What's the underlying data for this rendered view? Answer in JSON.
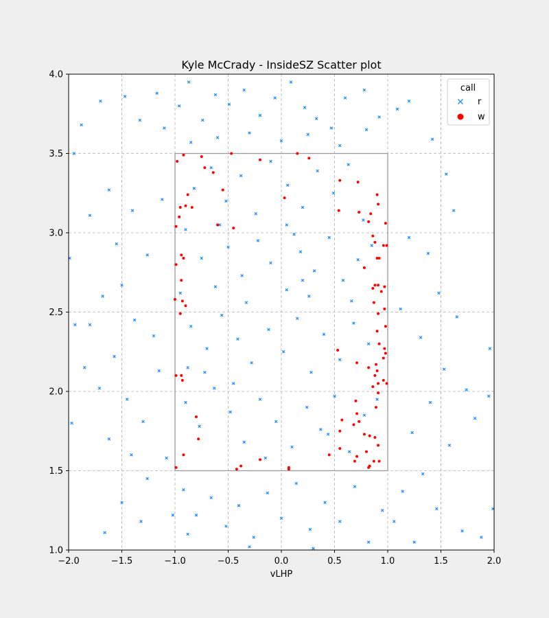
{
  "chart_data": {
    "type": "scatter",
    "title": "Kyle McCrady - InsideSZ Scatter plot",
    "xlabel": "vLHP",
    "ylabel": "",
    "xlim": [
      -2.0,
      2.0
    ],
    "ylim": [
      1.0,
      4.0
    ],
    "x_ticks": [
      "−2.0",
      "−1.5",
      "−1.0",
      "−0.5",
      "0.0",
      "0.5",
      "1.0",
      "1.5",
      "2.0"
    ],
    "y_ticks": [
      "1.0",
      "1.5",
      "2.0",
      "2.5",
      "3.0",
      "3.5",
      "4.0"
    ],
    "grid": true,
    "legend": {
      "title": "call",
      "position": "top-right"
    },
    "strike_zone": {
      "x": [
        -1.0,
        1.0
      ],
      "y": [
        1.5,
        3.5
      ],
      "color": "#999999"
    },
    "series": [
      {
        "name": "r",
        "marker": "x",
        "color": "#1e90ff",
        "points": [
          [
            -1.95,
            3.5
          ],
          [
            -1.88,
            3.68
          ],
          [
            -1.7,
            3.83
          ],
          [
            -1.47,
            3.86
          ],
          [
            -1.33,
            3.71
          ],
          [
            -1.17,
            3.88
          ],
          [
            -1.1,
            3.66
          ],
          [
            -0.96,
            3.8
          ],
          [
            -0.87,
            3.95
          ],
          [
            -0.74,
            3.71
          ],
          [
            -0.62,
            3.87
          ],
          [
            -0.49,
            3.81
          ],
          [
            -0.35,
            3.9
          ],
          [
            -0.2,
            3.74
          ],
          [
            -0.06,
            3.85
          ],
          [
            0.09,
            3.95
          ],
          [
            0.22,
            3.79
          ],
          [
            0.33,
            3.72
          ],
          [
            0.47,
            3.66
          ],
          [
            0.6,
            3.85
          ],
          [
            0.78,
            3.9
          ],
          [
            0.92,
            3.73
          ],
          [
            1.09,
            3.78
          ],
          [
            1.2,
            3.83
          ],
          [
            1.42,
            3.59
          ],
          [
            -1.8,
            3.11
          ],
          [
            -1.62,
            3.27
          ],
          [
            -1.55,
            2.93
          ],
          [
            -1.4,
            3.14
          ],
          [
            -1.26,
            2.86
          ],
          [
            -1.12,
            3.21
          ],
          [
            -1.5,
            2.67
          ],
          [
            -1.68,
            2.6
          ],
          [
            -1.38,
            2.45
          ],
          [
            -1.2,
            2.35
          ],
          [
            -1.57,
            2.22
          ],
          [
            -1.8,
            2.42
          ],
          [
            -1.71,
            2.02
          ],
          [
            -1.45,
            1.95
          ],
          [
            -1.3,
            1.81
          ],
          [
            -1.15,
            2.13
          ],
          [
            -1.62,
            1.7
          ],
          [
            -1.41,
            1.6
          ],
          [
            -1.26,
            1.45
          ],
          [
            -1.08,
            1.58
          ],
          [
            -1.5,
            1.3
          ],
          [
            -1.32,
            1.18
          ],
          [
            -1.02,
            1.22
          ],
          [
            -0.88,
            1.1
          ],
          [
            -1.66,
            1.11
          ],
          [
            1.55,
            3.37
          ],
          [
            1.62,
            3.14
          ],
          [
            1.38,
            2.87
          ],
          [
            1.2,
            2.97
          ],
          [
            1.48,
            2.62
          ],
          [
            1.65,
            2.47
          ],
          [
            1.31,
            2.34
          ],
          [
            1.12,
            2.52
          ],
          [
            1.53,
            2.14
          ],
          [
            1.74,
            2.01
          ],
          [
            1.4,
            1.93
          ],
          [
            1.23,
            1.74
          ],
          [
            1.58,
            1.66
          ],
          [
            1.33,
            1.48
          ],
          [
            1.14,
            1.37
          ],
          [
            1.46,
            1.26
          ],
          [
            1.7,
            1.12
          ],
          [
            1.06,
            1.18
          ],
          [
            1.25,
            1.05
          ],
          [
            1.88,
            1.08
          ],
          [
            1.82,
            1.83
          ],
          [
            1.96,
            2.27
          ],
          [
            1.95,
            1.97
          ],
          [
            1.99,
            1.26
          ],
          [
            -1.97,
            1.8
          ],
          [
            -1.94,
            2.42
          ],
          [
            -1.99,
            2.84
          ],
          [
            -1.85,
            2.15
          ],
          [
            -0.9,
            3.02
          ],
          [
            -0.75,
            2.84
          ],
          [
            -0.62,
            2.66
          ],
          [
            -0.5,
            2.91
          ],
          [
            -0.37,
            2.73
          ],
          [
            -0.22,
            2.95
          ],
          [
            -0.1,
            2.81
          ],
          [
            0.05,
            2.64
          ],
          [
            0.18,
            2.88
          ],
          [
            0.31,
            2.76
          ],
          [
            0.45,
            2.97
          ],
          [
            0.58,
            2.7
          ],
          [
            0.72,
            2.83
          ],
          [
            0.85,
            2.92
          ],
          [
            -0.85,
            2.41
          ],
          [
            -0.7,
            2.27
          ],
          [
            -0.56,
            2.48
          ],
          [
            -0.41,
            2.33
          ],
          [
            -0.28,
            2.18
          ],
          [
            -0.12,
            2.39
          ],
          [
            0.02,
            2.25
          ],
          [
            0.15,
            2.46
          ],
          [
            0.28,
            2.12
          ],
          [
            0.4,
            2.36
          ],
          [
            0.55,
            2.2
          ],
          [
            0.68,
            2.43
          ],
          [
            0.82,
            2.3
          ],
          [
            -0.9,
            1.93
          ],
          [
            -0.77,
            1.78
          ],
          [
            -0.63,
            2.02
          ],
          [
            -0.48,
            1.87
          ],
          [
            -0.35,
            1.68
          ],
          [
            -0.2,
            1.95
          ],
          [
            -0.05,
            1.81
          ],
          [
            0.1,
            1.65
          ],
          [
            0.24,
            1.9
          ],
          [
            0.37,
            1.76
          ],
          [
            0.5,
            1.97
          ],
          [
            0.64,
            1.62
          ],
          [
            0.78,
            1.85
          ],
          [
            -0.82,
            3.28
          ],
          [
            -0.66,
            3.41
          ],
          [
            -0.52,
            3.2
          ],
          [
            -0.38,
            3.36
          ],
          [
            -0.24,
            3.12
          ],
          [
            -0.1,
            3.45
          ],
          [
            0.06,
            3.3
          ],
          [
            0.2,
            3.16
          ],
          [
            0.34,
            3.39
          ],
          [
            0.49,
            3.25
          ],
          [
            0.63,
            3.43
          ],
          [
            0.77,
            3.08
          ],
          [
            -0.95,
            2.62
          ],
          [
            -0.33,
            2.56
          ],
          [
            0.26,
            2.6
          ],
          [
            0.66,
            2.57
          ],
          [
            -0.58,
            3.05
          ],
          [
            0.12,
            2.99
          ],
          [
            -0.45,
            2.05
          ],
          [
            0.44,
            1.73
          ],
          [
            -0.92,
            1.38
          ],
          [
            -0.8,
            1.22
          ],
          [
            -0.66,
            1.33
          ],
          [
            -0.52,
            1.15
          ],
          [
            -0.4,
            1.28
          ],
          [
            -0.26,
            1.08
          ],
          [
            -0.13,
            1.36
          ],
          [
            0.0,
            1.2
          ],
          [
            0.14,
            1.42
          ],
          [
            0.27,
            1.13
          ],
          [
            0.41,
            1.3
          ],
          [
            0.55,
            1.18
          ],
          [
            0.69,
            1.4
          ],
          [
            0.82,
            1.05
          ],
          [
            0.95,
            1.25
          ],
          [
            -0.3,
            1.02
          ],
          [
            0.3,
            1.01
          ],
          [
            -0.6,
            3.6
          ],
          [
            -0.3,
            3.63
          ],
          [
            0.0,
            3.58
          ],
          [
            0.25,
            3.62
          ],
          [
            0.55,
            3.55
          ],
          [
            0.8,
            3.65
          ],
          [
            -0.85,
            3.57
          ],
          [
            -0.72,
            2.12
          ],
          [
            0.2,
            2.7
          ],
          [
            -0.15,
            1.58
          ],
          [
            0.9,
            1.95
          ],
          [
            -0.88,
            2.15
          ],
          [
            0.05,
            3.05
          ]
        ]
      },
      {
        "name": "w",
        "marker": "o",
        "color": "#ff0000",
        "points": [
          [
            -0.98,
            3.45
          ],
          [
            -0.92,
            3.49
          ],
          [
            -0.75,
            3.48
          ],
          [
            -0.72,
            3.41
          ],
          [
            -0.47,
            3.5
          ],
          [
            -0.2,
            3.46
          ],
          [
            0.15,
            3.5
          ],
          [
            0.26,
            3.47
          ],
          [
            -0.88,
            3.24
          ],
          [
            -0.9,
            3.17
          ],
          [
            -0.84,
            3.16
          ],
          [
            -0.95,
            3.16
          ],
          [
            -0.96,
            3.1
          ],
          [
            -0.55,
            3.27
          ],
          [
            -0.6,
            3.05
          ],
          [
            -0.64,
            3.38
          ],
          [
            -0.45,
            3.03
          ],
          [
            0.03,
            3.22
          ],
          [
            -0.99,
            3.04
          ],
          [
            -0.99,
            2.8
          ],
          [
            -0.94,
            2.86
          ],
          [
            -0.92,
            2.84
          ],
          [
            -0.94,
            2.7
          ],
          [
            -0.93,
            2.57
          ],
          [
            -0.95,
            2.49
          ],
          [
            -0.9,
            2.54
          ],
          [
            -1.0,
            2.58
          ],
          [
            -0.99,
            2.1
          ],
          [
            -0.94,
            2.1
          ],
          [
            -0.93,
            2.07
          ],
          [
            -0.8,
            1.84
          ],
          [
            -0.78,
            1.7
          ],
          [
            -0.92,
            1.6
          ],
          [
            -0.99,
            1.52
          ],
          [
            -0.42,
            1.51
          ],
          [
            -0.38,
            1.53
          ],
          [
            -0.2,
            1.57
          ],
          [
            0.07,
            1.52
          ],
          [
            0.07,
            1.51
          ],
          [
            0.45,
            1.6
          ],
          [
            0.55,
            3.33
          ],
          [
            0.72,
            3.32
          ],
          [
            0.54,
            3.14
          ],
          [
            0.73,
            3.13
          ],
          [
            0.84,
            3.12
          ],
          [
            0.9,
            3.24
          ],
          [
            0.91,
            3.18
          ],
          [
            0.82,
            3.07
          ],
          [
            0.98,
            3.06
          ],
          [
            0.96,
            2.92
          ],
          [
            0.99,
            2.92
          ],
          [
            0.86,
            2.98
          ],
          [
            0.88,
            2.94
          ],
          [
            0.9,
            2.84
          ],
          [
            0.92,
            2.84
          ],
          [
            0.78,
            2.78
          ],
          [
            0.88,
            2.67
          ],
          [
            0.91,
            2.67
          ],
          [
            0.86,
            2.65
          ],
          [
            0.94,
            2.63
          ],
          [
            0.97,
            2.66
          ],
          [
            0.87,
            2.56
          ],
          [
            0.91,
            2.49
          ],
          [
            0.97,
            2.52
          ],
          [
            0.98,
            2.41
          ],
          [
            0.9,
            2.38
          ],
          [
            0.92,
            2.3
          ],
          [
            0.97,
            2.27
          ],
          [
            0.96,
            2.21
          ],
          [
            0.98,
            2.24
          ],
          [
            0.71,
            2.18
          ],
          [
            0.53,
            2.26
          ],
          [
            0.89,
            2.17
          ],
          [
            0.9,
            2.13
          ],
          [
            0.82,
            2.15
          ],
          [
            0.88,
            2.1
          ],
          [
            0.96,
            2.07
          ],
          [
            0.99,
            2.05
          ],
          [
            0.91,
            2.05
          ],
          [
            0.86,
            2.03
          ],
          [
            0.91,
            1.99
          ],
          [
            0.7,
            1.94
          ],
          [
            0.89,
            1.9
          ],
          [
            0.71,
            1.86
          ],
          [
            0.73,
            1.81
          ],
          [
            0.57,
            1.82
          ],
          [
            0.68,
            1.79
          ],
          [
            0.78,
            1.73
          ],
          [
            0.83,
            1.72
          ],
          [
            0.88,
            1.71
          ],
          [
            0.55,
            1.75
          ],
          [
            0.91,
            1.66
          ],
          [
            0.55,
            1.64
          ],
          [
            0.71,
            1.59
          ],
          [
            0.8,
            1.62
          ],
          [
            0.83,
            1.53
          ],
          [
            0.82,
            1.52
          ],
          [
            0.69,
            1.56
          ],
          [
            0.87,
            1.56
          ],
          [
            0.92,
            1.56
          ]
        ]
      }
    ]
  }
}
